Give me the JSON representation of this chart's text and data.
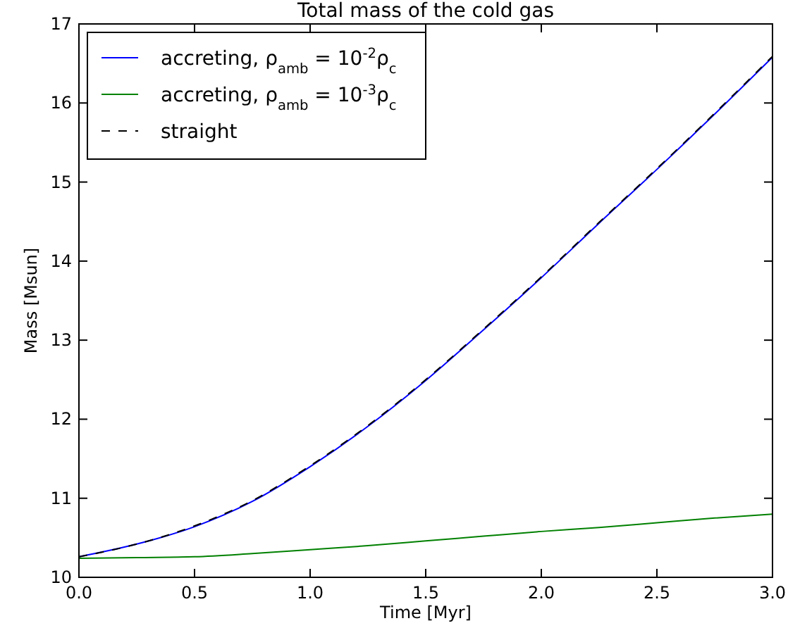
{
  "chart_data": {
    "type": "line",
    "title": "Total mass of the cold gas",
    "xlabel": "Time [Myr]",
    "ylabel": "Mass [Msun]",
    "x": [
      0,
      0.25,
      0.5,
      0.75,
      1.0,
      1.25,
      1.5,
      1.75,
      2.0,
      2.25,
      2.5,
      2.75,
      3.0
    ],
    "series": [
      {
        "name": "accreting, ρ$_{amb}$ = 10$^{-2}$ρ$_{c}$",
        "color": "#0000ff",
        "values": [
          10.26,
          10.42,
          10.64,
          10.96,
          11.4,
          11.91,
          12.49,
          13.13,
          13.79,
          14.48,
          15.16,
          15.86,
          16.58
        ]
      },
      {
        "name": "accreting, ρ$_{amb}$ = 10$^{-3}$ρ$_{c}$",
        "color": "#008000",
        "values": [
          10.24,
          10.25,
          10.26,
          10.3,
          10.35,
          10.4,
          10.46,
          10.52,
          10.58,
          10.63,
          10.69,
          10.75,
          10.8
        ]
      },
      {
        "name": "straight",
        "color": "#000000",
        "line_style": "dashed",
        "values": [
          10.26,
          10.42,
          10.65,
          10.97,
          11.41,
          11.92,
          12.5,
          13.14,
          13.8,
          14.49,
          15.17,
          15.87,
          16.59
        ]
      }
    ],
    "xlim": [
      0,
      3
    ],
    "xticks": [
      {
        "value": 0,
        "label": "0.0"
      },
      {
        "value": 0.5,
        "label": "0.5"
      },
      {
        "value": 1,
        "label": "1.0"
      },
      {
        "value": 1.5,
        "label": "1.5"
      },
      {
        "value": 2,
        "label": "2.0"
      },
      {
        "value": 2.5,
        "label": "2.5"
      },
      {
        "value": 3,
        "label": "3.0"
      }
    ],
    "ylim": [
      10,
      17
    ],
    "yticks": [
      10,
      11,
      12,
      13,
      14,
      15,
      16,
      17
    ],
    "grid": false,
    "legend": "top left"
  }
}
